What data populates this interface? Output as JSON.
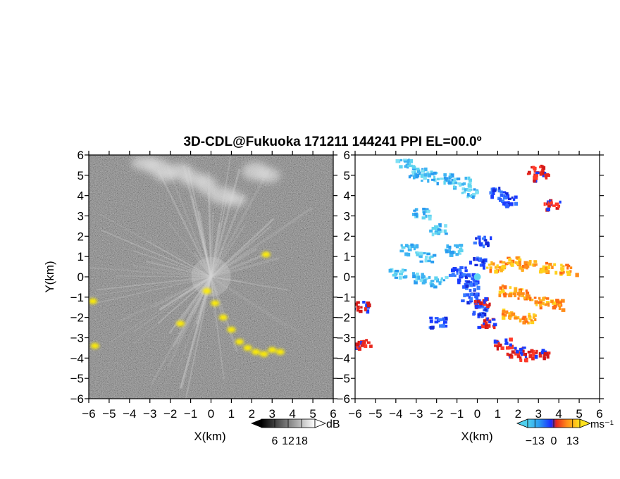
{
  "title": "3D-CDL@Fukuoka 171211 144241 PPI EL=00.0º",
  "colors": {
    "background": "#ffffff",
    "axes": "#000000",
    "highlight": "#ffee00",
    "noise_dark": "#181818",
    "vel_cyan": "#5fd4f0",
    "vel_blue": "#1a3cff",
    "vel_red": "#e8281e",
    "vel_orange": "#ff8c1a",
    "vel_yellow": "#ffd21e"
  },
  "chart_data": [
    {
      "type": "heatmap",
      "name": "reflectivity",
      "xlabel": "X(km)",
      "ylabel": "Y(km)",
      "xlim": [
        -6,
        6
      ],
      "ylim": [
        -6,
        6
      ],
      "xticks": [
        -6,
        -5,
        -4,
        -3,
        -2,
        -1,
        0,
        1,
        2,
        3,
        4,
        5,
        6
      ],
      "yticks": [
        -6,
        -5,
        -4,
        -3,
        -2,
        -1,
        0,
        1,
        2,
        3,
        4,
        5,
        6
      ],
      "grid": false,
      "colorbar": {
        "unit": "dB",
        "ticks": [
          6,
          12,
          18
        ],
        "min": 0,
        "max": 24,
        "colormap": "grayscale"
      },
      "features": [
        {
          "feature": "cloud",
          "points": [
            [
              -3.2,
              5.6
            ],
            [
              -2.6,
              5.4
            ],
            [
              -2.2,
              5.0
            ],
            [
              -1.5,
              5.2
            ],
            [
              -0.8,
              4.8
            ],
            [
              -0.2,
              4.5
            ],
            [
              0.6,
              4.0
            ],
            [
              1.2,
              3.8
            ],
            [
              2.2,
              5.2
            ],
            [
              2.8,
              5.0
            ]
          ]
        },
        {
          "feature": "yellow-echo",
          "points": [
            [
              -0.2,
              -0.7
            ],
            [
              0.2,
              -1.3
            ],
            [
              0.6,
              -2.0
            ],
            [
              1.0,
              -2.6
            ],
            [
              1.4,
              -3.2
            ],
            [
              1.8,
              -3.5
            ],
            [
              2.2,
              -3.7
            ],
            [
              2.6,
              -3.8
            ],
            [
              3.0,
              -3.6
            ],
            [
              3.4,
              -3.7
            ],
            [
              -1.5,
              -2.3
            ],
            [
              -5.8,
              -1.2
            ],
            [
              -5.7,
              -3.4
            ],
            [
              2.7,
              1.1
            ]
          ]
        }
      ]
    },
    {
      "type": "heatmap",
      "name": "velocity",
      "xlabel": "X(km)",
      "xlim": [
        -6,
        6
      ],
      "ylim": [
        -6,
        6
      ],
      "xticks": [
        -6,
        -5,
        -4,
        -3,
        -2,
        -1,
        0,
        1,
        2,
        3,
        4,
        5,
        6
      ],
      "yticks": [
        -6,
        -5,
        -4,
        -3,
        -2,
        -1,
        0,
        1,
        2,
        3,
        4,
        5,
        6
      ],
      "grid": false,
      "colorbar": {
        "unit": "ms⁻¹",
        "ticks": [
          -13,
          0,
          13
        ],
        "min": -18,
        "max": 18,
        "colormap": "cyan-blue-red-orange-yellow"
      },
      "features": [
        {
          "feature": "cyan-plume",
          "points": [
            [
              -3.6,
              5.6
            ],
            [
              -3.0,
              5.2
            ],
            [
              -2.4,
              5.0
            ],
            [
              -1.6,
              4.9
            ],
            [
              -0.8,
              4.7
            ],
            [
              -0.4,
              4.2
            ],
            [
              -2.8,
              3.2
            ],
            [
              -2.0,
              2.4
            ],
            [
              -1.2,
              1.4
            ],
            [
              -3.4,
              1.4
            ],
            [
              -2.6,
              1.0
            ],
            [
              -4.0,
              0.2
            ],
            [
              -3.0,
              0.0
            ],
            [
              -2.0,
              -0.2
            ]
          ]
        },
        {
          "feature": "blue-core",
          "points": [
            [
              -1.0,
              0.3
            ],
            [
              -0.6,
              0.0
            ],
            [
              -0.4,
              -0.4
            ],
            [
              0.0,
              0.8
            ],
            [
              0.2,
              1.8
            ],
            [
              1.0,
              4.2
            ],
            [
              1.4,
              3.8
            ],
            [
              -2.0,
              -2.2
            ],
            [
              -0.4,
              -1.0
            ],
            [
              0.0,
              -1.6
            ]
          ]
        },
        {
          "feature": "red-fringe",
          "points": [
            [
              0.2,
              -1.2
            ],
            [
              0.4,
              -2.2
            ],
            [
              1.2,
              -3.2
            ],
            [
              1.8,
              -3.6
            ],
            [
              2.4,
              -3.8
            ],
            [
              3.0,
              -3.7
            ],
            [
              2.8,
              5.3
            ],
            [
              3.0,
              5.0
            ],
            [
              3.6,
              3.6
            ],
            [
              -5.8,
              -1.4
            ],
            [
              -5.7,
              -3.3
            ]
          ]
        },
        {
          "feature": "orange-yellow-fan",
          "points": [
            [
              0.8,
              0.6
            ],
            [
              1.6,
              0.8
            ],
            [
              2.4,
              0.6
            ],
            [
              3.4,
              0.5
            ],
            [
              4.4,
              0.4
            ],
            [
              1.4,
              -0.6
            ],
            [
              2.2,
              -0.8
            ],
            [
              3.0,
              -1.2
            ],
            [
              3.8,
              -1.3
            ],
            [
              1.6,
              -1.8
            ],
            [
              2.4,
              -2.0
            ]
          ]
        }
      ]
    }
  ]
}
